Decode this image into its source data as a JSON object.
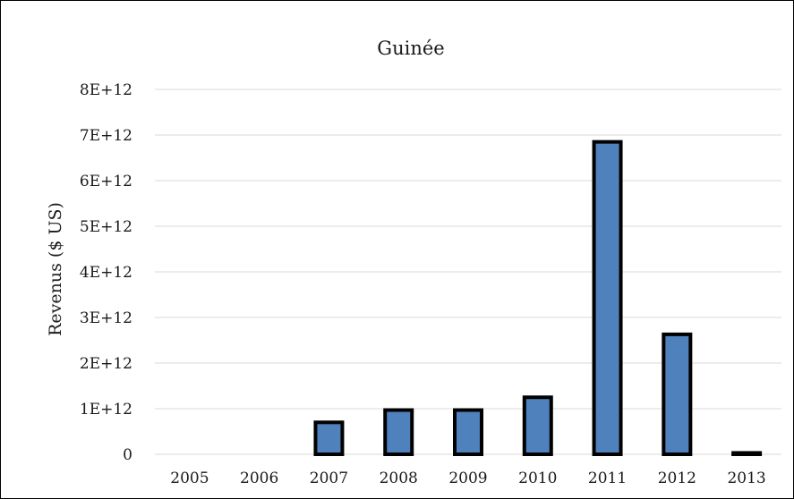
{
  "chart_data": {
    "type": "bar",
    "title": "Guinée",
    "xlabel": "",
    "ylabel": "Revenus ($ US)",
    "categories": [
      "2005",
      "2006",
      "2007",
      "2008",
      "2009",
      "2010",
      "2011",
      "2012",
      "2013"
    ],
    "values": [
      0,
      0,
      700000000000,
      970000000000,
      970000000000,
      1250000000000,
      6850000000000,
      2630000000000,
      30000000000
    ],
    "ylim": [
      0,
      8000000000000
    ],
    "yticks": [
      {
        "value": 0,
        "label": "0"
      },
      {
        "value": 1000000000000,
        "label": "1E+12"
      },
      {
        "value": 2000000000000,
        "label": "2E+12"
      },
      {
        "value": 3000000000000,
        "label": "3E+12"
      },
      {
        "value": 4000000000000,
        "label": "4E+12"
      },
      {
        "value": 5000000000000,
        "label": "5E+12"
      },
      {
        "value": 6000000000000,
        "label": "6E+12"
      },
      {
        "value": 7000000000000,
        "label": "7E+12"
      },
      {
        "value": 8000000000000,
        "label": "8E+12"
      }
    ],
    "grid": true,
    "legend": "none",
    "bar_color": "#4f81bd",
    "bar_edge_color": "#000000",
    "grid_color": "#d9d9d9"
  }
}
